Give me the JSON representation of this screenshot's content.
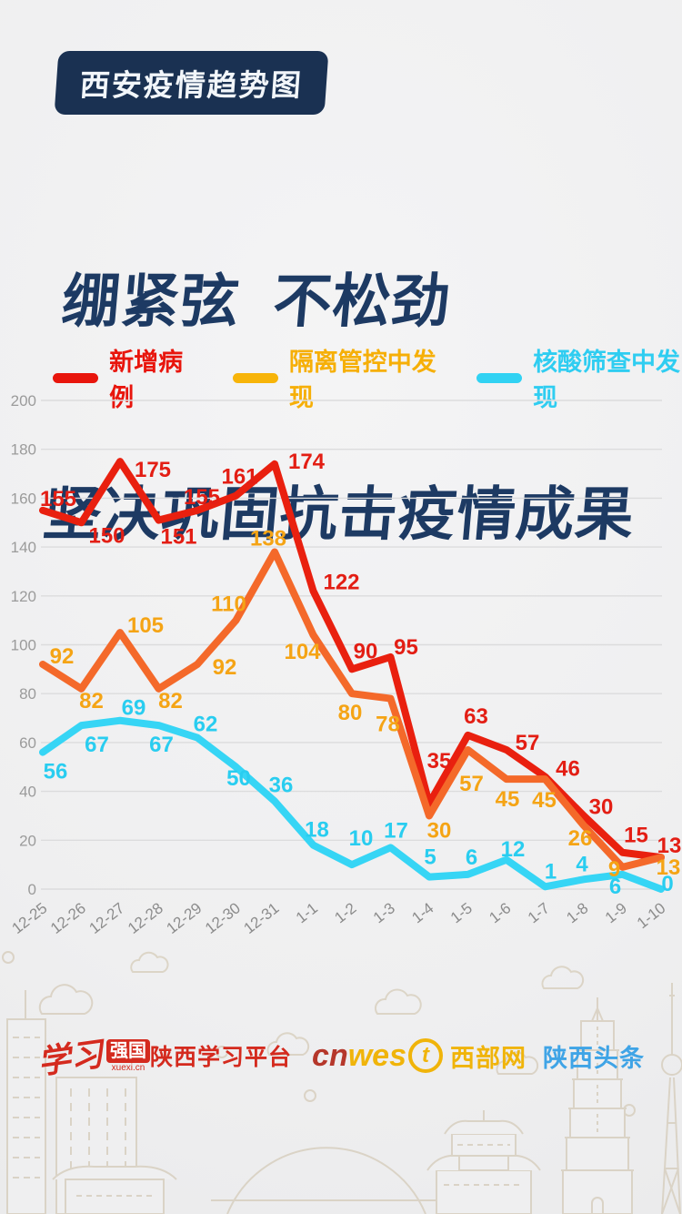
{
  "badge": {
    "label": "西安疫情趋势图"
  },
  "title": {
    "line1": "绷紧弦  不松劲",
    "line2": "坚决巩固抗击疫情成果"
  },
  "legend": [
    {
      "label": "新增病例",
      "swatch": "#e8150c",
      "text_color": "#e8150c"
    },
    {
      "label": "隔离管控中发现",
      "swatch": "#f7b409",
      "text_color": "#f6af07"
    },
    {
      "label": "核酸筛查中发现",
      "swatch": "#31d2f3",
      "text_color": "#2fcdf1"
    }
  ],
  "chart_data": {
    "type": "line",
    "title": "西安疫情趋势图",
    "categories": [
      "12-25",
      "12-26",
      "12-27",
      "12-28",
      "12-29",
      "12-30",
      "12-31",
      "1-1",
      "1-2",
      "1-3",
      "1-4",
      "1-5",
      "1-6",
      "1-7",
      "1-8",
      "1-9",
      "1-10"
    ],
    "series": [
      {
        "name": "新增病例",
        "color": "#e9200f",
        "label_color": "#e31e14",
        "values": [
          155,
          150,
          175,
          151,
          155,
          161,
          174,
          122,
          90,
          95,
          35,
          63,
          57,
          46,
          30,
          15,
          13
        ]
      },
      {
        "name": "隔离管控中发现",
        "color": "#f4692a",
        "label_color": "#f5a415",
        "values": [
          92,
          82,
          105,
          82,
          92,
          110,
          138,
          104,
          80,
          78,
          30,
          57,
          45,
          45,
          26,
          9,
          13
        ]
      },
      {
        "name": "核酸筛查中发现",
        "color": "#36d5f5",
        "label_color": "#29cdf0",
        "values": [
          56,
          67,
          69,
          67,
          62,
          50,
          36,
          18,
          10,
          17,
          5,
          6,
          12,
          1,
          4,
          6,
          0
        ]
      }
    ],
    "ylim": [
      0,
      200
    ],
    "ytick_step": 20,
    "grid": true,
    "legend_position": "top",
    "xlabel": "",
    "ylabel": ""
  },
  "footer": {
    "xuexi": {
      "script": "学习",
      "box": "强国",
      "domain": "xuexi.cn",
      "platform": "陕西学习平台"
    },
    "cnwest": {
      "cn": "cn",
      "wes": "wes",
      "t": "t",
      "site": "西部网"
    },
    "toutiao": "陕西头条"
  }
}
